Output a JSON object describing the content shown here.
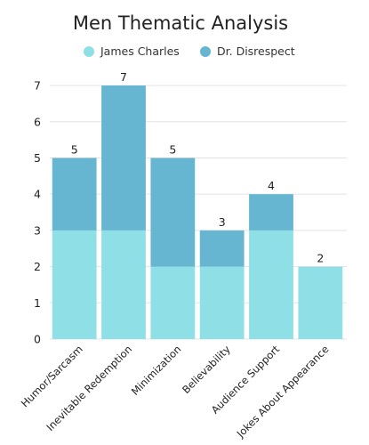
{
  "chart_data": {
    "type": "bar",
    "stacked": true,
    "title": "Men Thematic Analysis",
    "categories": [
      "Humor/Sarcasm",
      "Inevitable Redemption",
      "Minimization",
      "Believability",
      "Audience Support",
      "Jokes About Appearance"
    ],
    "series": [
      {
        "name": "James Charles",
        "values": [
          3,
          3,
          2,
          2,
          3,
          2
        ],
        "color": "#8fe0e6"
      },
      {
        "name": "Dr. Disrespect",
        "values": [
          2,
          4,
          3,
          1,
          1,
          0
        ],
        "color": "#66b6d2"
      }
    ],
    "totals": [
      5,
      7,
      5,
      3,
      4,
      2
    ],
    "yticks": [
      0,
      1,
      2,
      3,
      4,
      5,
      6,
      7
    ],
    "ylim": [
      0,
      7.1
    ],
    "grid": true,
    "legend_position": "top-center",
    "xlabel": "",
    "ylabel": ""
  }
}
